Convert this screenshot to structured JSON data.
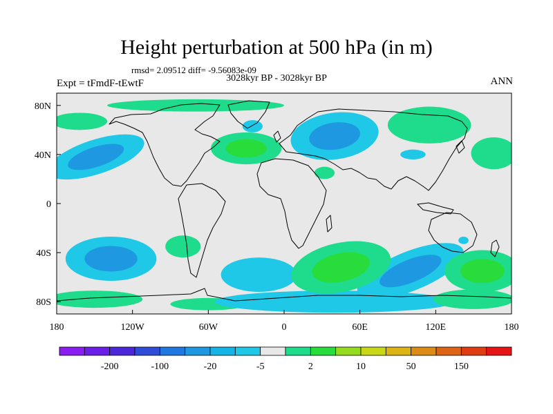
{
  "title": "Height perturbation at 500 hPa (in m)",
  "stats": "rmsd= 2.09512 diff= -9.56083e-09",
  "period": "3028kyr BP - 3028kyr BP",
  "experiment": "Expt = tFmdF-tEwtF",
  "season": "ANN",
  "map": {
    "projection": "cylindrical-equidistant",
    "lon_range": [
      -180,
      180
    ],
    "lat_range": [
      -90,
      90
    ],
    "lon_ticks": [
      {
        "value": -180,
        "label": "180"
      },
      {
        "value": -120,
        "label": "120W"
      },
      {
        "value": -60,
        "label": "60W"
      },
      {
        "value": 0,
        "label": "0"
      },
      {
        "value": 60,
        "label": "60E"
      },
      {
        "value": 120,
        "label": "120E"
      },
      {
        "value": 180,
        "label": "180"
      }
    ],
    "lat_ticks": [
      {
        "value": 80,
        "label": "80N"
      },
      {
        "value": 40,
        "label": "40N"
      },
      {
        "value": 0,
        "label": "0"
      },
      {
        "value": -40,
        "label": "40S"
      },
      {
        "value": -80,
        "label": "80S"
      }
    ],
    "background_color": "#e8e8e8",
    "coastline_color": "#000000"
  },
  "colorbar": {
    "colors": [
      "#8a1ef0",
      "#6a1ee6",
      "#4a28d8",
      "#2e4cd8",
      "#1e78e0",
      "#1e98e0",
      "#14b4e6",
      "#1ec8e6",
      "#e8e8e8",
      "#1edc8c",
      "#28dc3c",
      "#96dc1e",
      "#c8d814",
      "#dcb414",
      "#dc8c14",
      "#dc6414",
      "#e03c14",
      "#e61414"
    ],
    "labels": [
      {
        "after_index": 1,
        "text": "-200"
      },
      {
        "after_index": 3,
        "text": "-100"
      },
      {
        "after_index": 5,
        "text": "-20"
      },
      {
        "after_index": 7,
        "text": "-5"
      },
      {
        "after_index": 9,
        "text": "2"
      },
      {
        "after_index": 11,
        "text": "10"
      },
      {
        "after_index": 13,
        "text": "50"
      },
      {
        "after_index": 15,
        "text": "150"
      }
    ]
  },
  "anomalies": [
    {
      "lon": -149,
      "lat": 38,
      "rx": 40,
      "ry": 14,
      "rot": -18,
      "level": "neg",
      "core": true
    },
    {
      "lon": -162,
      "lat": 67,
      "rx": 22,
      "ry": 7,
      "rot": 0,
      "level": "pos"
    },
    {
      "lon": -70,
      "lat": 80,
      "rx": 70,
      "ry": 5,
      "rot": 0,
      "level": "pos"
    },
    {
      "lon": -30,
      "lat": 45,
      "rx": 28,
      "ry": 13,
      "rot": 0,
      "level": "pos",
      "core": true
    },
    {
      "lon": -25,
      "lat": 63,
      "rx": 8,
      "ry": 5,
      "rot": 0,
      "level": "neg"
    },
    {
      "lon": 40,
      "lat": 55,
      "rx": 35,
      "ry": 19,
      "rot": -8,
      "level": "neg",
      "core": true
    },
    {
      "lon": 32,
      "lat": 25,
      "rx": 8,
      "ry": 5,
      "rot": 0,
      "level": "pos"
    },
    {
      "lon": 102,
      "lat": 40,
      "rx": 10,
      "ry": 4,
      "rot": 0,
      "level": "neg"
    },
    {
      "lon": 115,
      "lat": 64,
      "rx": 33,
      "ry": 15,
      "rot": 0,
      "level": "pos"
    },
    {
      "lon": 166,
      "lat": 41,
      "rx": 18,
      "ry": 13,
      "rot": 0,
      "level": "pos"
    },
    {
      "lon": -137,
      "lat": -45,
      "rx": 36,
      "ry": 18,
      "rot": 0,
      "level": "neg",
      "core": true
    },
    {
      "lon": -80,
      "lat": -35,
      "rx": 14,
      "ry": 9,
      "rot": 0,
      "level": "pos"
    },
    {
      "lon": -150,
      "lat": -78,
      "rx": 38,
      "ry": 7,
      "rot": 0,
      "level": "pos"
    },
    {
      "lon": -60,
      "lat": -82,
      "rx": 30,
      "ry": 5,
      "rot": 0,
      "level": "pos"
    },
    {
      "lon": -20,
      "lat": -58,
      "rx": 30,
      "ry": 14,
      "rot": 0,
      "level": "neg"
    },
    {
      "lon": 40,
      "lat": -80,
      "rx": 95,
      "ry": 9,
      "rot": 0,
      "level": "neg"
    },
    {
      "lon": 100,
      "lat": -55,
      "rx": 45,
      "ry": 16,
      "rot": -22,
      "level": "neg",
      "core": true
    },
    {
      "lon": 45,
      "lat": -52,
      "rx": 40,
      "ry": 20,
      "rot": -12,
      "level": "pos",
      "core": true
    },
    {
      "lon": 157,
      "lat": -55,
      "rx": 30,
      "ry": 17,
      "rot": 0,
      "level": "pos",
      "core": true
    },
    {
      "lon": 150,
      "lat": -78,
      "rx": 32,
      "ry": 8,
      "rot": 0,
      "level": "pos"
    },
    {
      "lon": 142,
      "lat": -30,
      "rx": 4,
      "ry": 3,
      "rot": 0,
      "level": "neg"
    }
  ]
}
